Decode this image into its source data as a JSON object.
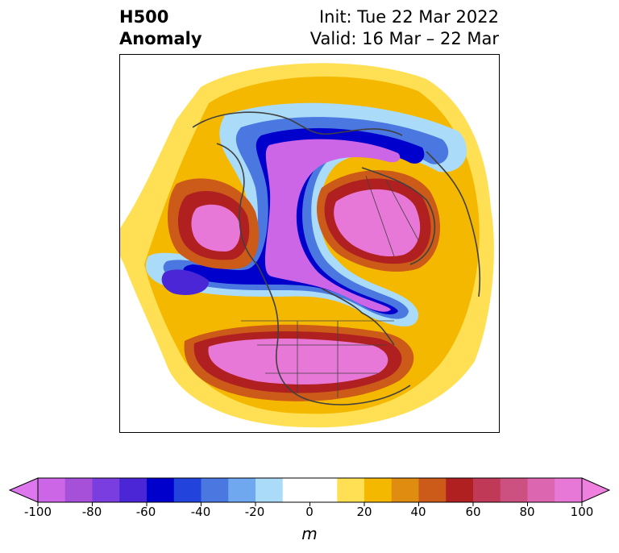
{
  "header": {
    "title_line1": "H500",
    "title_line2": "Anomaly",
    "init_text": "Init: Tue 22 Mar 2022",
    "valid_text": "Valid: 16 Mar – 22 Mar"
  },
  "map": {
    "projection": "polar-stereographic",
    "region": "Northern Hemisphere (North America / Arctic / Europe)",
    "field": "500 hPa geopotential height anomaly"
  },
  "colorbar": {
    "unit": "m",
    "ticks": [
      "-100",
      "-80",
      "-60",
      "-40",
      "-20",
      "0",
      "20",
      "40",
      "60",
      "80",
      "100"
    ],
    "extend": "both",
    "colors": [
      "#cc66e6",
      "#a64fd9",
      "#7a3ee0",
      "#4a26d6",
      "#0000cc",
      "#2244dd",
      "#4a78e0",
      "#6fa8ee",
      "#aadcfa",
      "#ffffff",
      "#ffffff",
      "#ffe055",
      "#f5b800",
      "#e08c10",
      "#cc5a18",
      "#b02020",
      "#c03a58",
      "#cc5080",
      "#dd66b0",
      "#e878d8"
    ]
  }
}
